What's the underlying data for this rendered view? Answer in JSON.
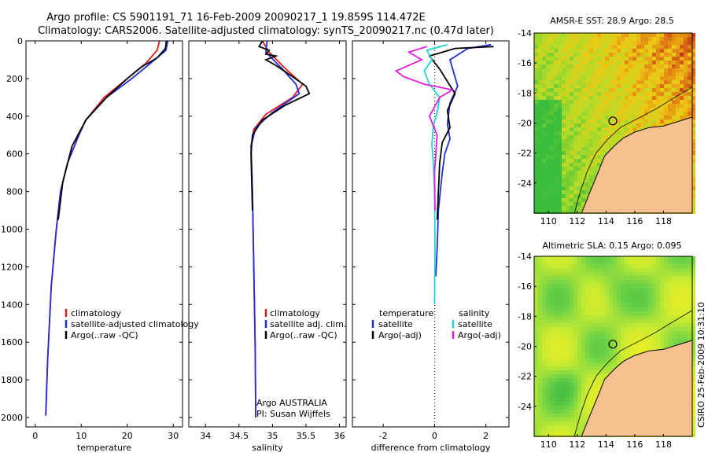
{
  "page": {
    "title_line1": "Argo profile: CS 5901191_71 16-Feb-2009 20090217_1 19.859S 114.472E",
    "title_line2": "Climatology: CARS2006. Satellite-adjusted climatology: synTS_20090217.nc (0.47d later)",
    "footer": "CSIRO 25-Feb-2009 10:31:10"
  },
  "colors": {
    "climatology": "#e31a1c",
    "satellite": "#1f2fd6",
    "argo": "#000000",
    "salinity_satellite": "#22d3d3",
    "salinity_argo": "#e11de1",
    "land": "#f7c08f"
  },
  "chart_data": [
    {
      "type": "line",
      "xlabel": "temperature",
      "ylabel": "",
      "xlim": [
        -2,
        32
      ],
      "ylim": [
        2050,
        0
      ],
      "xticks": [
        0,
        10,
        20,
        30
      ],
      "yticks": [
        0,
        200,
        400,
        600,
        800,
        1000,
        1200,
        1400,
        1600,
        1800,
        2000
      ],
      "legend": [
        "climatology",
        "satellite-adjusted climatology",
        "Argo(..raw -QC)"
      ],
      "series": [
        {
          "name": "climatology",
          "color": "#e31a1c",
          "x": [
            27.0,
            26.5,
            24.0,
            20.0,
            15.0,
            11.0,
            9.5,
            7.0,
            5.5,
            4.6,
            3.5,
            2.7,
            2.3
          ],
          "y": [
            0,
            50,
            120,
            200,
            300,
            420,
            500,
            650,
            800,
            1000,
            1300,
            1700,
            1990
          ]
        },
        {
          "name": "satellite-adjusted climatology",
          "color": "#1f2fd6",
          "x": [
            28.8,
            28.4,
            25.0,
            21.0,
            15.5,
            11.0,
            9.5,
            7.0,
            5.5,
            4.6,
            3.5,
            2.7,
            2.3
          ],
          "y": [
            0,
            50,
            120,
            200,
            300,
            420,
            500,
            650,
            800,
            1000,
            1300,
            1700,
            1990
          ]
        },
        {
          "name": "Argo(..raw -QC)",
          "color": "#000000",
          "x": [
            28.5,
            28.3,
            26.5,
            23.0,
            20.0,
            15.5,
            11.0,
            8.0,
            6.0,
            5.0
          ],
          "y": [
            0,
            40,
            90,
            140,
            200,
            300,
            420,
            560,
            750,
            950
          ]
        }
      ],
      "annotations": []
    },
    {
      "type": "line",
      "xlabel": "salinity",
      "ylabel": "",
      "xlim": [
        33.75,
        36.1
      ],
      "ylim": [
        2050,
        0
      ],
      "xticks": [
        34,
        34.5,
        35,
        35.5,
        36
      ],
      "legend": [
        "climatology",
        "satellite adj. clim.",
        "Argo(..raw -QC)"
      ],
      "series": [
        {
          "name": "climatology",
          "color": "#e31a1c",
          "x": [
            34.85,
            34.95,
            35.2,
            35.45,
            35.3,
            34.9,
            34.72,
            34.68,
            34.7,
            34.72,
            34.74,
            34.75
          ],
          "y": [
            0,
            60,
            150,
            230,
            300,
            390,
            470,
            560,
            800,
            1200,
            1600,
            2000
          ]
        },
        {
          "name": "satellite adj. clim.",
          "color": "#1f2fd6",
          "x": [
            34.92,
            34.9,
            35.15,
            35.35,
            35.4,
            35.0,
            34.75,
            34.68,
            34.7,
            34.72,
            34.74,
            34.75
          ],
          "y": [
            0,
            60,
            150,
            230,
            280,
            380,
            460,
            560,
            800,
            1200,
            1600,
            2000
          ]
        },
        {
          "name": "Argo(..raw -QC)",
          "color": "#000000",
          "x": [
            34.85,
            34.8,
            34.95,
            34.9,
            35.05,
            34.9,
            35.05,
            35.3,
            35.5,
            35.55,
            35.2,
            34.85,
            34.7,
            34.68,
            34.7
          ],
          "y": [
            0,
            30,
            50,
            70,
            80,
            100,
            130,
            190,
            240,
            280,
            340,
            420,
            500,
            600,
            900
          ]
        }
      ],
      "annotations": [
        "Argo AUSTRALIA",
        "PI: Susan Wijffels"
      ]
    },
    {
      "type": "line",
      "xlabel": "difference from climatology",
      "ylabel": "",
      "xlim": [
        -3.2,
        2.9
      ],
      "ylim": [
        2050,
        0
      ],
      "xticks": [
        -2,
        0,
        2
      ],
      "legend_temperature": [
        "temperature",
        "satellite",
        "Argo(-adj)"
      ],
      "legend_salinity": [
        "salinity",
        "satellite",
        "Argo(-adj)"
      ],
      "series": [
        {
          "name": "temperature satellite",
          "color": "#1f2fd6",
          "x": [
            2.2,
            1.3,
            0.6,
            0.9,
            0.6,
            0.5,
            0.6,
            0.4,
            0.3,
            0.15,
            0.1,
            0.05
          ],
          "y": [
            20,
            40,
            100,
            240,
            330,
            440,
            520,
            600,
            700,
            900,
            1100,
            1250
          ]
        },
        {
          "name": "temperature Argo(-adj)",
          "color": "#000000",
          "x": [
            2.3,
            0.8,
            -0.2,
            0.2,
            0.8,
            0.5,
            0.6,
            0.3,
            0.2,
            0.15,
            0.1
          ],
          "y": [
            30,
            40,
            80,
            150,
            280,
            370,
            460,
            540,
            650,
            800,
            950
          ]
        },
        {
          "name": "salinity satellite",
          "color": "#22d3d3",
          "x": [
            0.5,
            -0.3,
            -0.1,
            -0.4,
            -0.2,
            0.2,
            0.1,
            -0.05,
            -0.1,
            -0.05,
            0.0,
            0.02,
            0.0
          ],
          "y": [
            20,
            50,
            100,
            160,
            230,
            300,
            380,
            450,
            550,
            650,
            800,
            1100,
            1400
          ]
        },
        {
          "name": "salinity Argo(-adj)",
          "color": "#e11de1",
          "x": [
            -0.3,
            -1.0,
            -0.5,
            -1.5,
            -1.2,
            -0.4,
            0.7,
            0.2,
            -0.2,
            0.1,
            0.0,
            0.02
          ],
          "y": [
            30,
            60,
            100,
            160,
            190,
            230,
            260,
            300,
            400,
            500,
            700,
            900
          ]
        }
      ],
      "annotations": []
    },
    {
      "type": "heatmap",
      "title": "AMSR-E SST: 28.9 Argo: 28.5",
      "xticks": [
        110,
        112,
        114,
        116,
        118
      ],
      "yticks": [
        -14,
        -16,
        -18,
        -20,
        -22,
        -24
      ],
      "xlim": [
        109,
        120
      ],
      "ylim": [
        -26,
        -14
      ],
      "marker": {
        "lon": 114.472,
        "lat": -19.859
      }
    },
    {
      "type": "heatmap",
      "title": "Altimetric SLA: 0.15 Argo: 0.095",
      "xticks": [
        110,
        112,
        114,
        116,
        118
      ],
      "yticks": [
        -14,
        -16,
        -18,
        -20,
        -22,
        -24
      ],
      "xlim": [
        109,
        120
      ],
      "ylim": [
        -26,
        -14
      ],
      "marker": {
        "lon": 114.472,
        "lat": -19.859
      }
    }
  ]
}
